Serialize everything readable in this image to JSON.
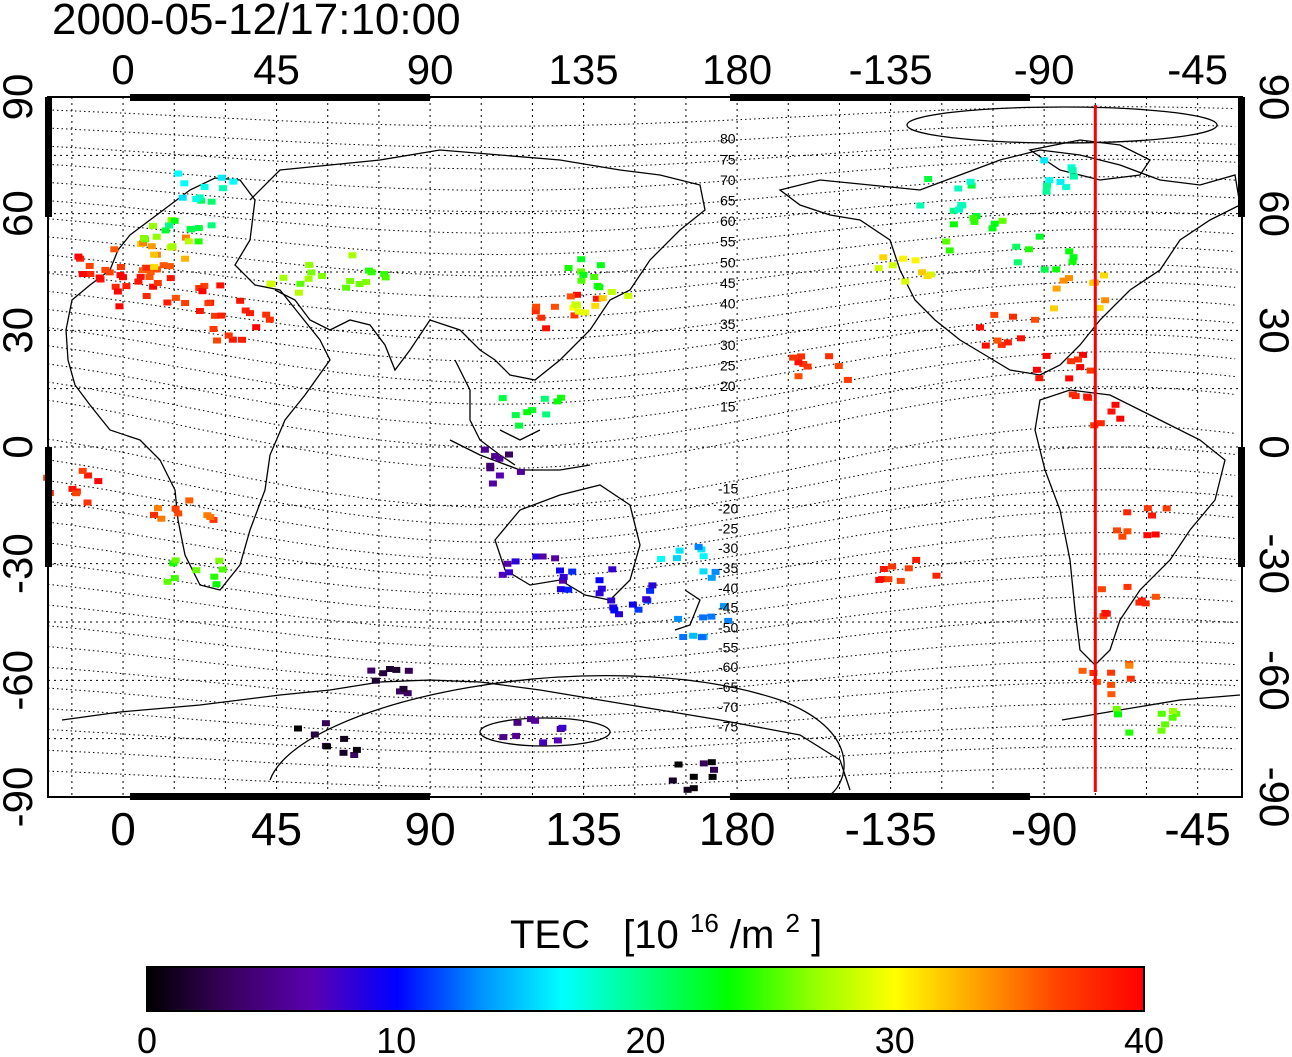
{
  "title": "2000-05-12/17:10:00",
  "axes": {
    "lon_ticks": [
      "0",
      "45",
      "90",
      "135",
      "180",
      "-135",
      "-90",
      "-45"
    ],
    "lat_ticks_left": [
      "90",
      "60",
      "30",
      "0",
      "-30",
      "-60",
      "-90"
    ],
    "lat_ticks_right": [
      "90",
      "60",
      "30",
      "0",
      "-30",
      "-60",
      "-90"
    ]
  },
  "contour_labels": {
    "north": [
      "80",
      "75",
      "70",
      "65",
      "60",
      "55",
      "50",
      "45",
      "40",
      "35",
      "30",
      "25",
      "20",
      "15"
    ],
    "south": [
      "-15",
      "-20",
      "-25",
      "-30",
      "-35",
      "-40",
      "-45",
      "-50",
      "-55",
      "-60",
      "-65",
      "-70",
      "-75"
    ]
  },
  "colorbar": {
    "label": "TEC",
    "unit_base": "[10",
    "unit_exp": "16",
    "unit_mid": "/m",
    "unit_exp2": "2",
    "unit_close": "]",
    "ticks": [
      "0",
      "10",
      "20",
      "30",
      "40"
    ],
    "range": [
      0,
      40
    ],
    "colors": [
      "#000000",
      "#3a0060",
      "#5a00b0",
      "#0000ff",
      "#0090ff",
      "#00ffff",
      "#00ff80",
      "#00ff00",
      "#90ff00",
      "#ffff00",
      "#ffa000",
      "#ff4000",
      "#ff0000"
    ]
  },
  "marker_line": {
    "lon": -75,
    "color": "#ff0000"
  },
  "chart_data": {
    "type": "scatter",
    "title": "2000-05-12/17:10:00",
    "xlabel": "",
    "ylabel": "",
    "xlim": [
      -22,
      328
    ],
    "ylim": [
      -90,
      90
    ],
    "x_display": "longitude, 180-360 shown as -180..0",
    "value_label": "TEC [10^16/m^2]",
    "value_range": [
      0,
      40
    ],
    "points": [
      {
        "lon": -5,
        "lat": 45,
        "tec": 38
      },
      {
        "lon": 5,
        "lat": 47,
        "tec": 37
      },
      {
        "lon": 10,
        "lat": 50,
        "tec": 33
      },
      {
        "lon": 15,
        "lat": 55,
        "tec": 26
      },
      {
        "lon": 20,
        "lat": 60,
        "tec": 22
      },
      {
        "lon": 25,
        "lat": 68,
        "tec": 17
      },
      {
        "lon": 0,
        "lat": 40,
        "tec": 39
      },
      {
        "lon": 15,
        "lat": 40,
        "tec": 38
      },
      {
        "lon": 30,
        "lat": 38,
        "tec": 39
      },
      {
        "lon": 35,
        "lat": 30,
        "tec": 38
      },
      {
        "lon": 50,
        "lat": 43,
        "tec": 27
      },
      {
        "lon": 70,
        "lat": 45,
        "tec": 26
      },
      {
        "lon": 130,
        "lat": 35,
        "tec": 38
      },
      {
        "lon": 140,
        "lat": 38,
        "tec": 30
      },
      {
        "lon": 135,
        "lat": 45,
        "tec": 24
      },
      {
        "lon": 120,
        "lat": 10,
        "tec": 22
      },
      {
        "lon": 115,
        "lat": -5,
        "tec": 5
      },
      {
        "lon": 120,
        "lat": -30,
        "tec": 8
      },
      {
        "lon": 135,
        "lat": -35,
        "tec": 9
      },
      {
        "lon": 150,
        "lat": -40,
        "tec": 10
      },
      {
        "lon": 170,
        "lat": -45,
        "tec": 14
      },
      {
        "lon": 165,
        "lat": -30,
        "tec": 15
      },
      {
        "lon": 22,
        "lat": -32,
        "tec": 25
      },
      {
        "lon": 18,
        "lat": -15,
        "tec": 36
      },
      {
        "lon": -15,
        "lat": -10,
        "tec": 38
      },
      {
        "lon": 80,
        "lat": -60,
        "tec": 2
      },
      {
        "lon": 60,
        "lat": -75,
        "tec": 2
      },
      {
        "lon": 120,
        "lat": -72,
        "tec": 6
      },
      {
        "lon": 170,
        "lat": -85,
        "tec": 1
      },
      {
        "lon": 230,
        "lat": 45,
        "tec": 30
      },
      {
        "lon": 250,
        "lat": 55,
        "tec": 24
      },
      {
        "lon": 270,
        "lat": 50,
        "tec": 22
      },
      {
        "lon": 280,
        "lat": 40,
        "tec": 33
      },
      {
        "lon": 260,
        "lat": 30,
        "tec": 38
      },
      {
        "lon": 275,
        "lat": 20,
        "tec": 39
      },
      {
        "lon": 285,
        "lat": 10,
        "tec": 39
      },
      {
        "lon": 300,
        "lat": -20,
        "tec": 38
      },
      {
        "lon": 295,
        "lat": -40,
        "tec": 38
      },
      {
        "lon": 290,
        "lat": -60,
        "tec": 36
      },
      {
        "lon": 300,
        "lat": -70,
        "tec": 25
      },
      {
        "lon": 205,
        "lat": 20,
        "tec": 38
      },
      {
        "lon": 230,
        "lat": -30,
        "tec": 38
      },
      {
        "lon": 240,
        "lat": 65,
        "tec": 20
      },
      {
        "lon": 275,
        "lat": 70,
        "tec": 18
      }
    ]
  }
}
